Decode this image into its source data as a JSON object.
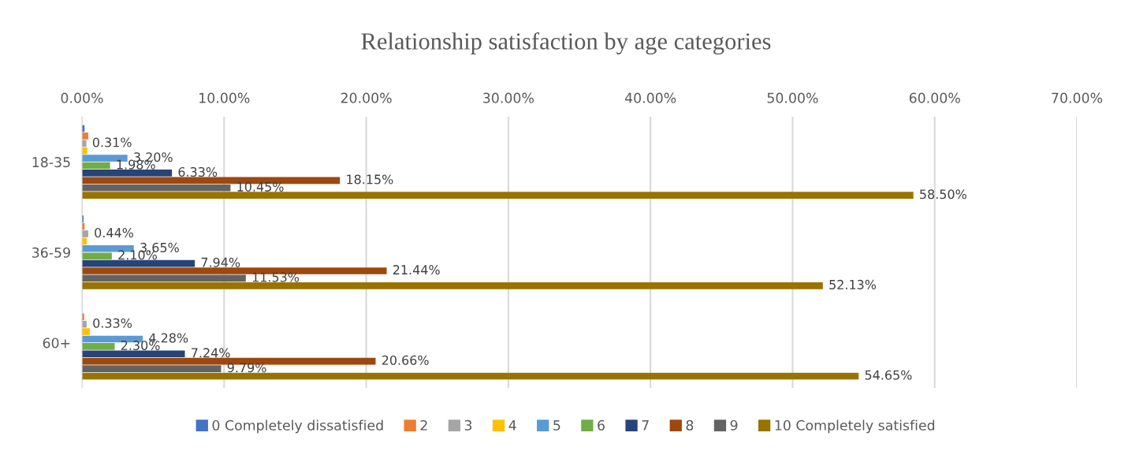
{
  "chart_data": {
    "type": "bar",
    "orientation": "horizontal",
    "title": "Relationship satisfaction by age categories",
    "categories": [
      "18-35",
      "36-59",
      "60+"
    ],
    "xlim": [
      0,
      70
    ],
    "xticks": [
      {
        "value": 0,
        "label": "0.00%"
      },
      {
        "value": 10,
        "label": "10.00%"
      },
      {
        "value": 20,
        "label": "20.00%"
      },
      {
        "value": 30,
        "label": "30.00%"
      },
      {
        "value": 40,
        "label": "40.00%"
      },
      {
        "value": 50,
        "label": "50.00%"
      },
      {
        "value": 60,
        "label": "60.00%"
      },
      {
        "value": 70,
        "label": "70.00%"
      }
    ],
    "grid": "x",
    "legend": "bottom",
    "series": [
      {
        "name": "0 Completely dissatisfied",
        "color": "#4472c4",
        "values": [
          0.18,
          0.11,
          null
        ]
      },
      {
        "name": "2",
        "color": "#ed7d31",
        "values": [
          0.44,
          0.18,
          0.15
        ]
      },
      {
        "name": "3",
        "color": "#a5a5a5",
        "values": [
          0.31,
          0.44,
          0.33
        ],
        "value_labels": [
          "0.31%",
          "0.44%",
          "0.33%"
        ]
      },
      {
        "name": "4",
        "color": "#ffc000",
        "values": [
          0.37,
          0.33,
          0.55
        ]
      },
      {
        "name": "5",
        "color": "#5b9bd5",
        "values": [
          3.2,
          3.65,
          4.28
        ],
        "value_labels": [
          "3.20%",
          "3.65%",
          "4.28%"
        ]
      },
      {
        "name": "6",
        "color": "#70ad47",
        "values": [
          1.98,
          2.1,
          2.3
        ],
        "value_labels": [
          "1.98%",
          "2.10%",
          "2.30%"
        ]
      },
      {
        "name": "7",
        "color": "#264478",
        "values": [
          6.33,
          7.94,
          7.24
        ],
        "value_labels": [
          "6.33%",
          "7.94%",
          "7.24%"
        ]
      },
      {
        "name": "8",
        "color": "#9e480e",
        "values": [
          18.15,
          21.44,
          20.66
        ],
        "value_labels": [
          "18.15%",
          "21.44%",
          "20.66%"
        ]
      },
      {
        "name": "9",
        "color": "#636363",
        "values": [
          10.45,
          11.53,
          9.79
        ],
        "value_labels": [
          "10.45%",
          "11.53%",
          "9.79%"
        ]
      },
      {
        "name": "10 Completely satisfied",
        "color": "#997300",
        "values": [
          58.5,
          52.13,
          54.65
        ],
        "value_labels": [
          "58.50%",
          "52.13%",
          "54.65%"
        ]
      }
    ]
  }
}
